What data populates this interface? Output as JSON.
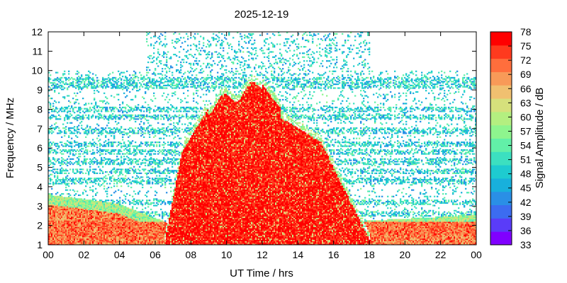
{
  "chart_data": {
    "type": "heatmap",
    "title": "2025-12-19",
    "xlabel": "UT Time / hrs",
    "ylabel": "Frequency / MHz",
    "colorbar_label": "Signal Amplitude / dB",
    "xlim": [
      0,
      24
    ],
    "ylim": [
      1,
      12
    ],
    "x_ticks": [
      "00",
      "02",
      "04",
      "06",
      "08",
      "10",
      "12",
      "14",
      "16",
      "18",
      "20",
      "22",
      "00"
    ],
    "y_ticks": [
      1,
      2,
      3,
      4,
      5,
      6,
      7,
      8,
      9,
      10,
      11,
      12
    ],
    "colorbar_range": [
      33,
      78
    ],
    "colorbar_ticks": [
      33,
      36,
      39,
      42,
      45,
      48,
      51,
      54,
      57,
      60,
      63,
      66,
      69,
      72,
      75,
      78
    ],
    "colormap": [
      "#8000ff",
      "#5a3cf8",
      "#3c6cf0",
      "#2a8fe6",
      "#18b0dc",
      "#1ecbd0",
      "#3ce0c0",
      "#62f0a8",
      "#8ef58e",
      "#b4ef80",
      "#d6e07c",
      "#f0c070",
      "#f89a58",
      "#ff6e3c",
      "#ff3a1e",
      "#ff0000"
    ],
    "features": {
      "daytime_band": {
        "start_hr": 6.5,
        "end_hr": 18.0,
        "peak_mhz": 9.3,
        "peak_time_hr": 12.0
      },
      "night_low_band": {
        "max_mhz": 3.6
      },
      "sparse_upper_window": {
        "start_hr": 5.5,
        "end_hr": 18.0,
        "upper_mhz": 12
      },
      "background_lines_mhz": [
        9.5,
        9.2,
        8.0,
        7.6,
        6.9,
        6.2,
        5.8,
        5.3,
        4.8,
        4.3,
        3.2,
        2.6
      ]
    }
  }
}
